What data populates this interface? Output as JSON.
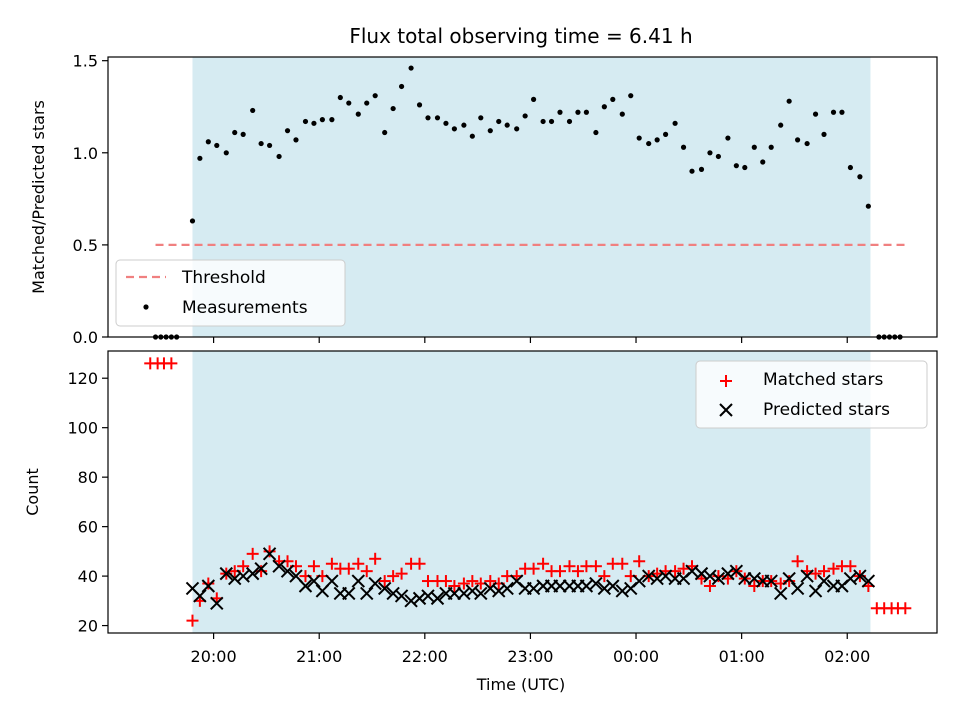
{
  "chart_data": [
    {
      "type": "scatter",
      "title": "Flux total observing time = 6.41 h",
      "xlabel": "",
      "ylabel": "Matched/Predicted stars",
      "ylim": [
        0,
        1.52
      ],
      "yticks": [
        0,
        0.5,
        1.0,
        1.5
      ],
      "ytick_labels": [
        "0.0",
        "0.5",
        "1.0",
        "1.5"
      ],
      "xlim_hours": [
        19.0,
        26.85
      ],
      "shaded_region_hours": [
        19.8,
        26.22
      ],
      "threshold": {
        "name": "Threshold",
        "y": 0.5,
        "x_range_hours": [
          19.45,
          26.55
        ],
        "color": "#f08080"
      },
      "legend": {
        "position": "lower-left",
        "entries": [
          "Threshold",
          "Measurements"
        ]
      },
      "series": [
        {
          "name": "Measurements",
          "color": "#000000",
          "x": [
            19.45,
            19.5,
            19.55,
            19.6,
            19.65,
            19.8,
            19.87,
            19.95,
            20.03,
            20.12,
            20.2,
            20.28,
            20.37,
            20.45,
            20.53,
            20.62,
            20.7,
            20.78,
            20.87,
            20.95,
            21.03,
            21.12,
            21.2,
            21.28,
            21.37,
            21.45,
            21.53,
            21.62,
            21.7,
            21.78,
            21.87,
            21.95,
            22.03,
            22.12,
            22.2,
            22.28,
            22.37,
            22.45,
            22.53,
            22.62,
            22.7,
            22.78,
            22.87,
            22.95,
            23.03,
            23.12,
            23.2,
            23.28,
            23.37,
            23.45,
            23.53,
            23.62,
            23.7,
            23.78,
            23.87,
            23.95,
            24.03,
            24.12,
            24.2,
            24.28,
            24.37,
            24.45,
            24.53,
            24.62,
            24.7,
            24.78,
            24.87,
            24.95,
            25.03,
            25.12,
            25.2,
            25.28,
            25.37,
            25.45,
            25.53,
            25.62,
            25.7,
            25.78,
            25.87,
            25.95,
            26.03,
            26.12,
            26.2,
            26.3,
            26.35,
            26.4,
            26.45,
            26.5
          ],
          "y": [
            0,
            0,
            0,
            0,
            0,
            0.63,
            0.97,
            1.06,
            1.04,
            1.0,
            1.11,
            1.1,
            1.23,
            1.05,
            1.04,
            0.98,
            1.12,
            1.07,
            1.17,
            1.16,
            1.18,
            1.18,
            1.3,
            1.27,
            1.21,
            1.27,
            1.31,
            1.11,
            1.24,
            1.36,
            1.46,
            1.26,
            1.19,
            1.19,
            1.16,
            1.13,
            1.15,
            1.09,
            1.19,
            1.12,
            1.17,
            1.15,
            1.13,
            1.2,
            1.29,
            1.17,
            1.17,
            1.22,
            1.17,
            1.22,
            1.22,
            1.11,
            1.25,
            1.29,
            1.21,
            1.31,
            1.08,
            1.05,
            1.07,
            1.1,
            1.16,
            1.03,
            0.9,
            0.91,
            1.0,
            0.98,
            1.08,
            0.93,
            0.92,
            1.03,
            0.95,
            1.03,
            1.15,
            1.28,
            1.07,
            1.05,
            1.21,
            1.1,
            1.22,
            1.22,
            0.92,
            0.87,
            0.71,
            0,
            0,
            0,
            0,
            0
          ]
        }
      ]
    },
    {
      "type": "scatter",
      "title": "",
      "xlabel": "Time (UTC)",
      "ylabel": "Count",
      "ylim": [
        17,
        131
      ],
      "yticks": [
        20,
        40,
        60,
        80,
        100,
        120
      ],
      "ytick_labels": [
        "20",
        "40",
        "60",
        "80",
        "100",
        "120"
      ],
      "xlim_hours": [
        19.0,
        26.85
      ],
      "xticks_hours": [
        20,
        21,
        22,
        23,
        24,
        25,
        26
      ],
      "xtick_labels": [
        "20:00",
        "21:00",
        "22:00",
        "23:00",
        "00:00",
        "01:00",
        "02:00"
      ],
      "shaded_region_hours": [
        19.8,
        26.22
      ],
      "legend": {
        "position": "top-right",
        "entries": [
          "Matched stars",
          "Predicted stars"
        ]
      },
      "series": [
        {
          "name": "Matched stars",
          "marker": "plus",
          "color": "#ff0000",
          "x": [
            19.4,
            19.47,
            19.53,
            19.6,
            19.8,
            19.87,
            19.95,
            20.03,
            20.12,
            20.2,
            20.28,
            20.37,
            20.45,
            20.53,
            20.62,
            20.7,
            20.78,
            20.87,
            20.95,
            21.03,
            21.12,
            21.2,
            21.28,
            21.37,
            21.45,
            21.53,
            21.62,
            21.7,
            21.78,
            21.87,
            21.95,
            22.03,
            22.12,
            22.2,
            22.28,
            22.37,
            22.45,
            22.53,
            22.62,
            22.7,
            22.78,
            22.87,
            22.95,
            23.03,
            23.12,
            23.2,
            23.28,
            23.37,
            23.45,
            23.53,
            23.62,
            23.7,
            23.78,
            23.87,
            23.95,
            24.03,
            24.12,
            24.2,
            24.28,
            24.37,
            24.45,
            24.53,
            24.62,
            24.7,
            24.78,
            24.87,
            24.95,
            25.03,
            25.12,
            25.2,
            25.28,
            25.37,
            25.45,
            25.53,
            25.62,
            25.7,
            25.78,
            25.87,
            25.95,
            26.03,
            26.12,
            26.2,
            26.28,
            26.35,
            26.42,
            26.48,
            26.55
          ],
          "y": [
            126,
            126,
            126,
            126,
            22,
            30,
            37,
            31,
            41,
            42,
            44,
            49,
            42,
            50,
            46,
            46,
            44,
            40,
            44,
            40,
            45,
            43,
            43,
            45,
            42,
            47,
            38,
            40,
            41,
            45,
            45,
            38,
            38,
            38,
            36,
            37,
            38,
            37,
            38,
            37,
            40,
            40,
            43,
            43,
            45,
            42,
            42,
            44,
            42,
            44,
            44,
            40,
            45,
            45,
            40,
            46,
            40,
            41,
            42,
            42,
            43,
            44,
            39,
            36,
            40,
            39,
            42,
            39,
            36,
            38,
            38,
            37,
            38,
            46,
            42,
            41,
            42,
            43,
            44,
            44,
            40,
            36,
            27,
            27,
            27,
            27,
            27
          ]
        },
        {
          "name": "Predicted stars",
          "marker": "x",
          "color": "#000000",
          "x": [
            19.8,
            19.87,
            19.95,
            20.03,
            20.12,
            20.2,
            20.28,
            20.37,
            20.45,
            20.53,
            20.62,
            20.7,
            20.78,
            20.87,
            20.95,
            21.03,
            21.12,
            21.2,
            21.28,
            21.37,
            21.45,
            21.53,
            21.62,
            21.7,
            21.78,
            21.87,
            21.95,
            22.03,
            22.12,
            22.2,
            22.28,
            22.37,
            22.45,
            22.53,
            22.62,
            22.7,
            22.78,
            22.87,
            22.95,
            23.03,
            23.12,
            23.2,
            23.28,
            23.37,
            23.45,
            23.53,
            23.62,
            23.7,
            23.78,
            23.87,
            23.95,
            24.03,
            24.12,
            24.2,
            24.28,
            24.37,
            24.45,
            24.53,
            24.62,
            24.7,
            24.78,
            24.87,
            24.95,
            25.03,
            25.12,
            25.2,
            25.28,
            25.37,
            25.45,
            25.53,
            25.62,
            25.7,
            25.78,
            25.87,
            25.95,
            26.03,
            26.12,
            26.2
          ],
          "y": [
            35,
            32,
            36,
            29,
            41,
            39,
            40,
            41,
            43,
            49,
            44,
            42,
            40,
            36,
            38,
            34,
            38,
            33,
            33,
            38,
            33,
            37,
            35,
            33,
            32,
            30,
            31,
            32,
            31,
            33,
            33,
            33,
            34,
            33,
            35,
            34,
            35,
            38,
            35,
            35,
            36,
            36,
            36,
            36,
            36,
            36,
            37,
            35,
            36,
            34,
            35,
            38,
            40,
            39,
            40,
            39,
            39,
            42,
            41,
            40,
            39,
            41,
            42,
            39,
            39,
            38,
            38,
            33,
            39,
            35,
            40,
            34,
            38,
            36,
            36,
            39,
            40,
            38
          ]
        }
      ]
    }
  ]
}
